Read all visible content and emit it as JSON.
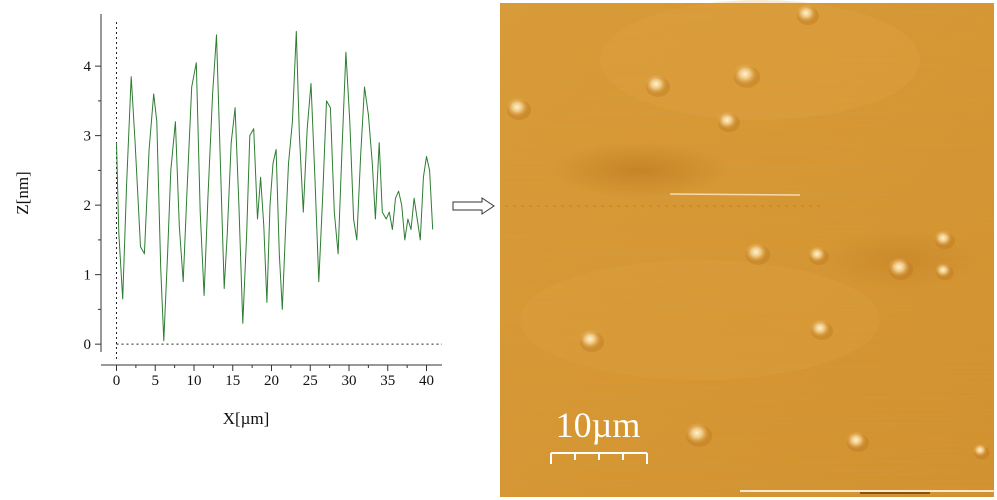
{
  "chart_data": {
    "type": "line",
    "xlabel": "X[µm]",
    "ylabel": "Z[nm]",
    "xlim": [
      -2,
      42
    ],
    "ylim": [
      -0.3,
      4.75
    ],
    "xticks": [
      0,
      5,
      10,
      15,
      20,
      25,
      30,
      35,
      40
    ],
    "yticks": [
      0,
      1,
      2,
      3,
      4
    ],
    "xtick_labels": [
      "0",
      "5",
      "10",
      "15",
      "20",
      "25",
      "30",
      "35",
      "40"
    ],
    "ytick_labels": [
      "0",
      "1",
      "2",
      "3",
      "4"
    ],
    "grid": false,
    "reference_lines": [
      "x = 0 (dotted)",
      "y = 0 (dotted)"
    ],
    "series": [
      {
        "color": "#2e7d32",
        "x": [
          0,
          0.3,
          0.8,
          1.3,
          1.9,
          2.4,
          3.1,
          3.6,
          4.2,
          4.8,
          5.2,
          5.7,
          6.1,
          6.6,
          7.0,
          7.6,
          8.1,
          8.6,
          9.1,
          9.7,
          10.3,
          10.8,
          11.3,
          11.8,
          12.4,
          12.9,
          13.4,
          13.9,
          14.3,
          14.8,
          15.3,
          15.8,
          16.3,
          16.8,
          17.2,
          17.7,
          18.2,
          18.6,
          19.0,
          19.4,
          19.8,
          20.2,
          20.6,
          21.0,
          21.4,
          21.8,
          22.2,
          22.7,
          23.2,
          23.6,
          24.1,
          24.6,
          25.1,
          25.6,
          26.1,
          26.6,
          27.1,
          27.6,
          28.1,
          28.6,
          29.1,
          29.6,
          30.1,
          30.6,
          31.0,
          31.5,
          32.0,
          32.5,
          33.0,
          33.4,
          33.9,
          34.3,
          34.8,
          35.2,
          35.6,
          36.0,
          36.4,
          36.8,
          37.2,
          37.6,
          38.0,
          38.4,
          38.8,
          39.2,
          39.6,
          40.0,
          40.4,
          40.8
        ],
        "y": [
          2.9,
          1.6,
          0.65,
          2.3,
          3.85,
          2.9,
          1.4,
          1.3,
          2.8,
          3.6,
          3.2,
          1.1,
          0.05,
          1.3,
          2.5,
          3.2,
          1.7,
          0.9,
          2.2,
          3.7,
          4.05,
          1.9,
          0.7,
          2.1,
          3.6,
          4.45,
          2.6,
          0.8,
          1.6,
          2.9,
          3.4,
          2.0,
          0.3,
          1.6,
          3.0,
          3.1,
          1.8,
          2.4,
          1.7,
          0.6,
          2.0,
          2.6,
          2.8,
          1.3,
          0.5,
          1.6,
          2.6,
          3.2,
          4.5,
          3.0,
          1.9,
          3.1,
          3.75,
          2.4,
          0.9,
          2.1,
          3.5,
          3.4,
          1.9,
          1.3,
          2.8,
          4.2,
          3.2,
          1.8,
          1.5,
          2.7,
          3.7,
          3.3,
          2.6,
          1.8,
          2.9,
          1.9,
          1.8,
          1.9,
          1.65,
          2.1,
          2.2,
          2.0,
          1.5,
          1.8,
          1.65,
          2.1,
          1.8,
          1.5,
          2.4,
          2.7,
          2.5,
          1.65
        ]
      }
    ]
  },
  "afm_image": {
    "scalebar_label": "10µm",
    "scalebar_ticks": 5,
    "colors": {
      "base": "#d9952c",
      "light": "#eec47a",
      "dark": "#b8731c",
      "highlight": "#fff2d4"
    }
  },
  "indicator": "arrow"
}
